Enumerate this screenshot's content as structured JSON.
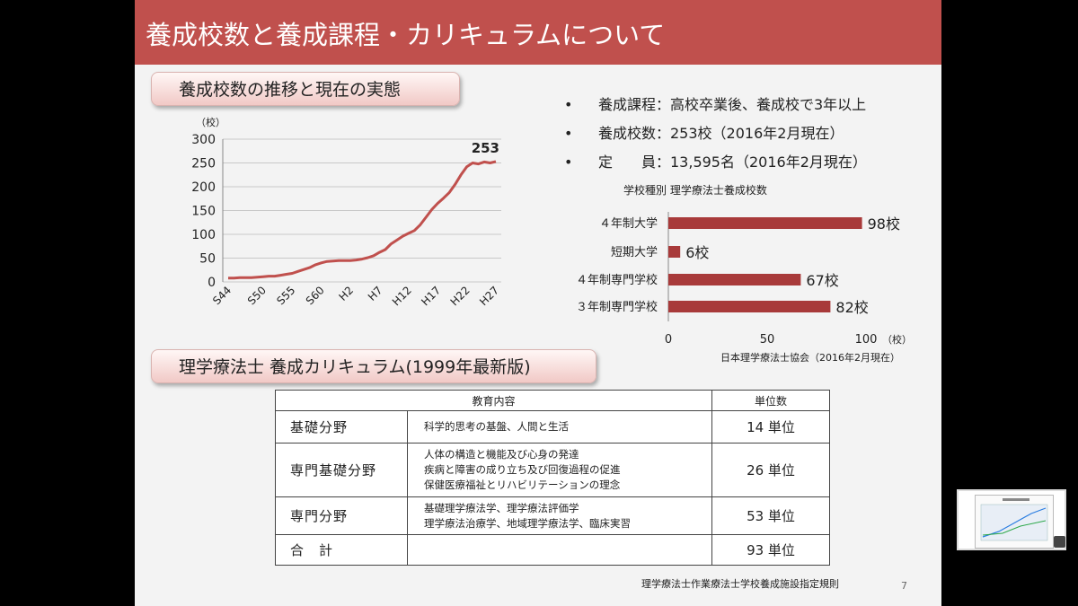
{
  "slide": {
    "title": "養成校数と養成課程・カリキュラムについて",
    "section1_label": "養成校数の推移と現在の実態",
    "section2_label": "理学療法士 養成カリキュラム(1999年最新版)",
    "page_number": "7",
    "colors": {
      "title_bar": "#c0504d",
      "line": "#c0504d",
      "bar": "#a83a3a"
    }
  },
  "info": [
    {
      "bullet": "•",
      "text": "養成課程：高校卒業後、養成校で3年以上"
    },
    {
      "bullet": "•",
      "text": "養成校数：253校（2016年2月現在）"
    },
    {
      "bullet": "•",
      "text": "定　　員：13,595名（2016年2月現在）"
    }
  ],
  "chart_data": [
    {
      "type": "line",
      "y_unit_label": "（校）",
      "ylim": [
        0,
        300
      ],
      "y_ticks": [
        "0",
        "50",
        "100",
        "150",
        "200",
        "250",
        "300"
      ],
      "x_ticks": [
        "S44",
        "S50",
        "S55",
        "S60",
        "H2",
        "H7",
        "H12",
        "H17",
        "H22",
        "H27"
      ],
      "end_label": "253",
      "grid": "horizontal",
      "series": [
        {
          "x": [
            "S44",
            "S45",
            "S46",
            "S47",
            "S48",
            "S49",
            "S50",
            "S51",
            "S52",
            "S53",
            "S54",
            "S55",
            "S56",
            "S57",
            "S58",
            "S59",
            "S60",
            "S61",
            "S62",
            "S63",
            "H1",
            "H2",
            "H3",
            "H4",
            "H5",
            "H6",
            "H7",
            "H8",
            "H9",
            "H10",
            "H11",
            "H12",
            "H13",
            "H14",
            "H15",
            "H16",
            "H17",
            "H18",
            "H19",
            "H20",
            "H21",
            "H22",
            "H23",
            "H24",
            "H25",
            "H26",
            "H27"
          ],
          "values": [
            8,
            8,
            9,
            9,
            9,
            10,
            11,
            12,
            12,
            14,
            16,
            18,
            22,
            26,
            30,
            36,
            40,
            43,
            44,
            45,
            45,
            45,
            46,
            48,
            51,
            55,
            62,
            68,
            80,
            88,
            96,
            102,
            108,
            120,
            136,
            152,
            165,
            176,
            188,
            205,
            225,
            242,
            250,
            248,
            252,
            250,
            253
          ]
        }
      ]
    },
    {
      "type": "bar",
      "title": "学校種別 理学療法士養成校数",
      "categories": [
        "４年制大学",
        "短期大学",
        "４年制専門学校",
        "３年制専門学校"
      ],
      "values": [
        98,
        6,
        67,
        82
      ],
      "value_labels": [
        "98校",
        "6校",
        "67校",
        "82校"
      ],
      "xlim": [
        0,
        100
      ],
      "x_ticks": [
        "0",
        "50",
        "100"
      ],
      "x_unit_label": "（校）",
      "source": "日本理学療法士協会（2016年2月現在）"
    }
  ],
  "curriculum": {
    "headers": {
      "content": "教育内容",
      "units": "単位数"
    },
    "rows": [
      {
        "field": "基礎分野",
        "content": [
          "科学的思考の基盤、人間と生活"
        ],
        "units": "14 単位"
      },
      {
        "field": "専門基礎分野",
        "content": [
          "人体の構造と機能及び心身の発達",
          "疾病と障害の成り立ち及び回復過程の促進",
          "保健医療福祉とリハビリテーションの理念"
        ],
        "units": "26 単位"
      },
      {
        "field": "専門分野",
        "content": [
          "基礎理学療法学、理学療法評価学",
          "理学療法治療学、地域理学療法学、臨床実習"
        ],
        "units": "53 単位"
      },
      {
        "field": "合　計",
        "content": [
          ""
        ],
        "units": "93 単位"
      }
    ],
    "source": "理学療法士作業療法士学校養成施設指定規則"
  }
}
